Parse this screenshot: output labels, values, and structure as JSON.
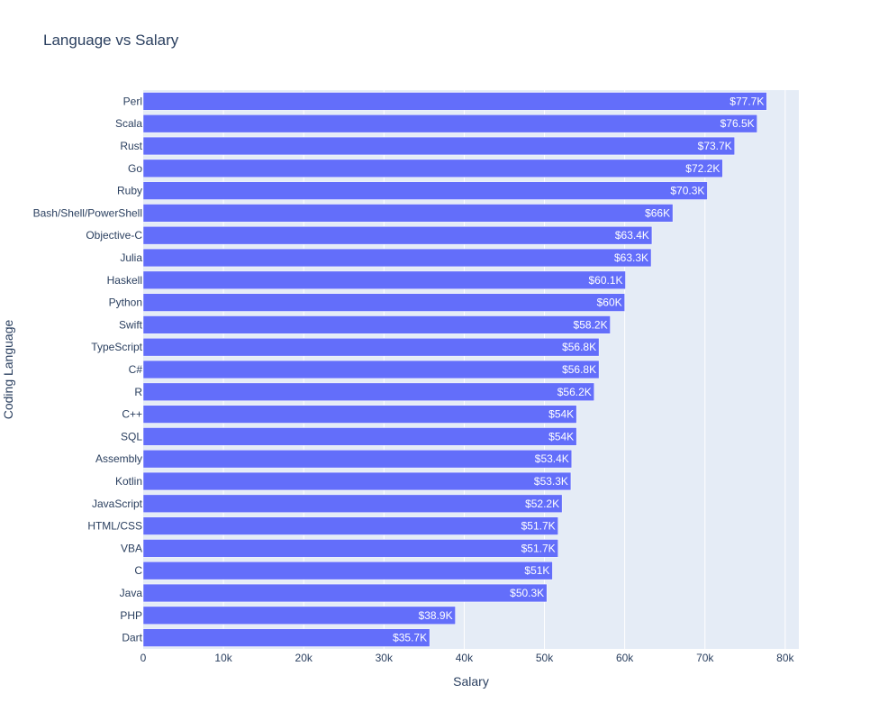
{
  "chart_data": {
    "type": "bar",
    "orientation": "horizontal",
    "title": "Language vs Salary",
    "xlabel": "Salary",
    "ylabel": "Coding Language",
    "xlim": [
      0,
      81700
    ],
    "xticks": [
      0,
      10000,
      20000,
      30000,
      40000,
      50000,
      60000,
      70000,
      80000
    ],
    "xtick_labels": [
      "0",
      "10k",
      "20k",
      "30k",
      "40k",
      "50k",
      "60k",
      "70k",
      "80k"
    ],
    "grid": true,
    "bar_color": "#636efa",
    "plot_bg": "#e5ecf6",
    "categories": [
      "Perl",
      "Scala",
      "Rust",
      "Go",
      "Ruby",
      "Bash/Shell/PowerShell",
      "Objective-C",
      "Julia",
      "Haskell",
      "Python",
      "Swift",
      "TypeScript",
      "C#",
      "R",
      "C++",
      "SQL",
      "Assembly",
      "Kotlin",
      "JavaScript",
      "HTML/CSS",
      "VBA",
      "C",
      "Java",
      "PHP",
      "Dart"
    ],
    "values": [
      77700,
      76500,
      73700,
      72200,
      70300,
      66000,
      63400,
      63300,
      60100,
      60000,
      58200,
      56800,
      56800,
      56200,
      54000,
      54000,
      53400,
      53300,
      52200,
      51700,
      51700,
      51000,
      50300,
      38900,
      35700
    ],
    "labels": [
      "$77.7K",
      "$76.5K",
      "$73.7K",
      "$72.2K",
      "$70.3K",
      "$66K",
      "$63.4K",
      "$63.3K",
      "$60.1K",
      "$60K",
      "$58.2K",
      "$56.8K",
      "$56.8K",
      "$56.2K",
      "$54K",
      "$54K",
      "$53.4K",
      "$53.3K",
      "$52.2K",
      "$51.7K",
      "$51.7K",
      "$51K",
      "$50.3K",
      "$38.9K",
      "$35.7K"
    ]
  }
}
